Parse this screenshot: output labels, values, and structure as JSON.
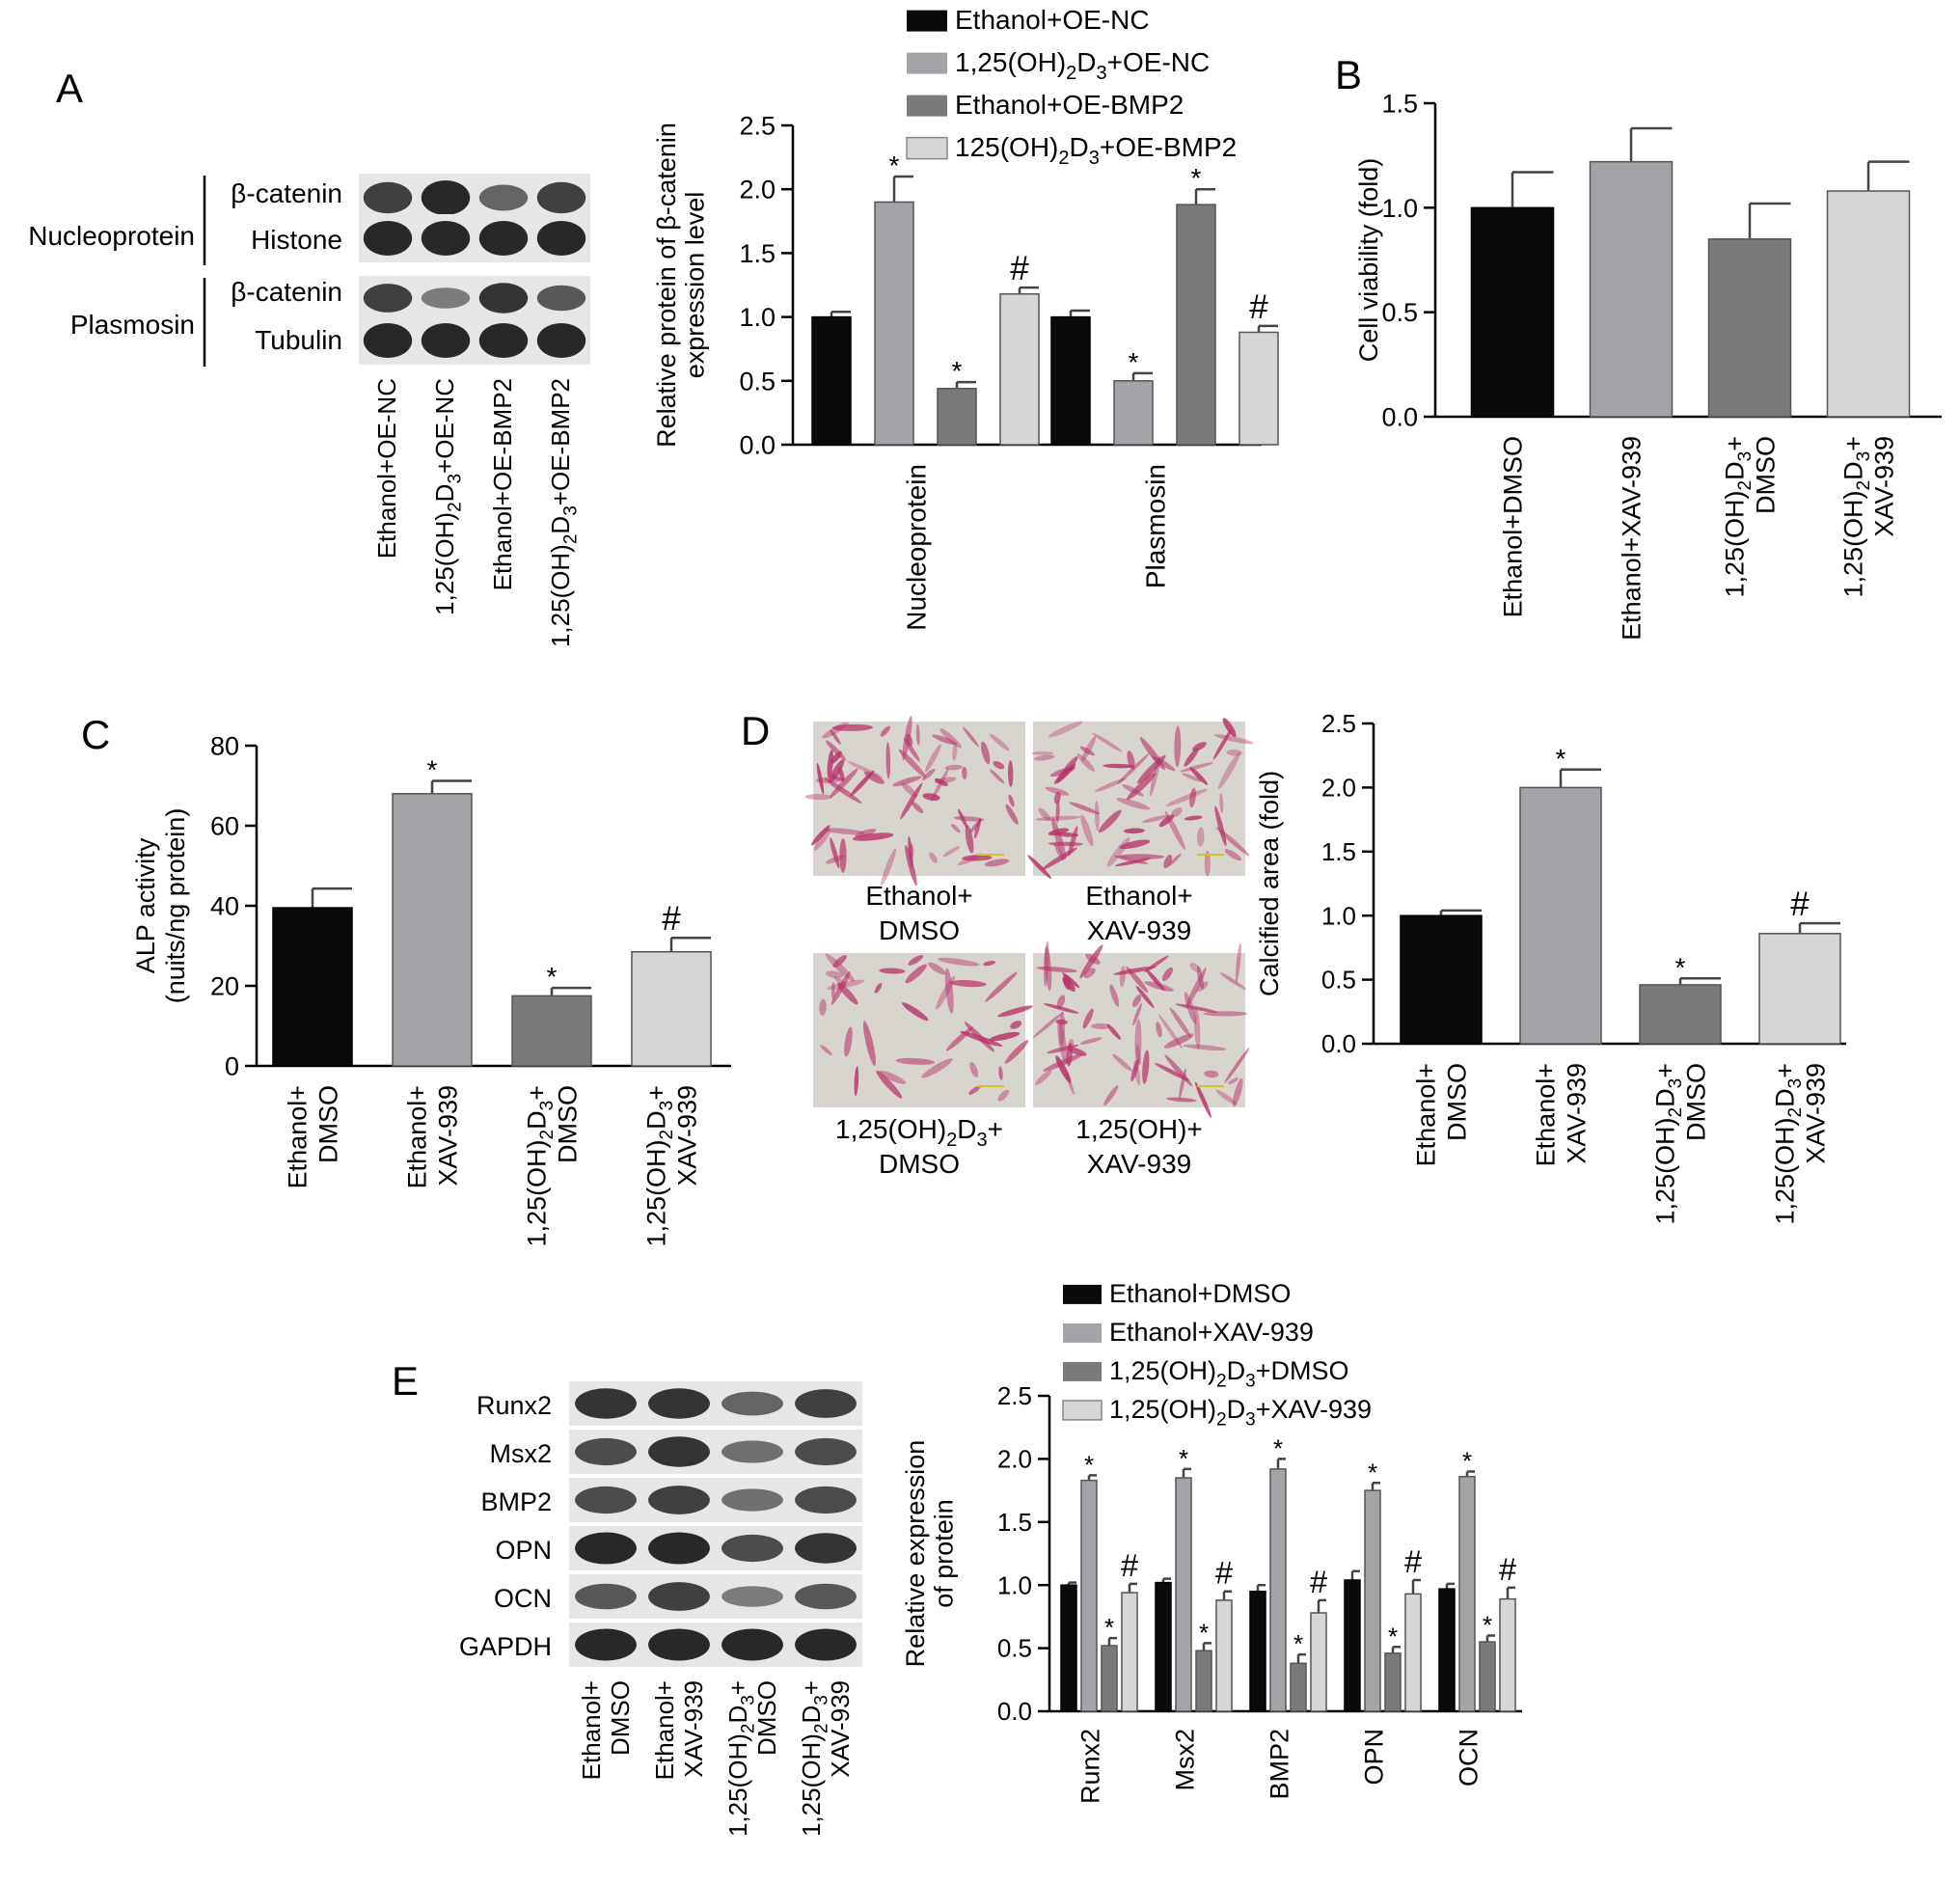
{
  "panels": {
    "A": {
      "letter": "A",
      "blot": {
        "row_labels": [
          "β-catenin",
          "Histone",
          "β-catenin",
          "Tubulin"
        ],
        "group_labels": [
          "Nucleoprotein",
          "Plasmosin"
        ],
        "lanes": [
          [
            "Ethanol+OE-NC"
          ],
          [
            "1,25(OH)",
            "2",
            "D",
            "3",
            "+OE-NC"
          ],
          [
            "Ethanol+OE-BMP2"
          ],
          [
            "1,25(OH)",
            "2",
            "D",
            "3",
            "+OE-BMP2"
          ]
        ],
        "band_intensity": [
          [
            0.8,
            1.0,
            0.5,
            0.8
          ],
          [
            1.0,
            1.0,
            1.0,
            1.0
          ],
          [
            0.8,
            0.3,
            0.9,
            0.6
          ],
          [
            1.0,
            1.0,
            1.0,
            1.0
          ]
        ]
      }
    },
    "B": {
      "letter": "B"
    },
    "C": {
      "letter": "C"
    },
    "D": {
      "letter": "D",
      "micrographs": [
        [
          "Ethanol+",
          "DMSO"
        ],
        [
          "Ethanol+",
          "XAV-939"
        ],
        [
          "1,25(OH)",
          "2",
          "D",
          "3",
          "+",
          "DMSO"
        ],
        [
          "1,25(OH)+",
          "XAV-939"
        ]
      ]
    },
    "E": {
      "letter": "E",
      "blot": {
        "row_labels": [
          "Runx2",
          "Msx2",
          "BMP2",
          "OPN",
          "OCN",
          "GAPDH"
        ],
        "lanes": [
          [
            "Ethanol+",
            "DMSO"
          ],
          [
            "Ethanol+",
            "XAV-939"
          ],
          [
            "1,25(OH)",
            "2",
            "D",
            "3",
            "+",
            "DMSO"
          ],
          [
            "1,25(OH)",
            "2",
            "D",
            "3",
            "+",
            "XAV-939"
          ]
        ],
        "band_intensity": [
          [
            0.9,
            0.9,
            0.5,
            0.8
          ],
          [
            0.7,
            0.9,
            0.4,
            0.7
          ],
          [
            0.7,
            0.8,
            0.4,
            0.7
          ],
          [
            1.0,
            1.0,
            0.7,
            0.9
          ],
          [
            0.6,
            0.8,
            0.3,
            0.6
          ],
          [
            1.0,
            1.0,
            1.0,
            1.0
          ]
        ]
      }
    }
  },
  "colors": {
    "black": "#0a0a0a",
    "gray_mid_light": "#a3a3a8",
    "gray_dark": "#7a7a7a",
    "gray_light": "#d6d6d6",
    "micrograph_bg": "#d8d4ce",
    "stain": "#b8326a"
  },
  "chart_data": [
    {
      "id": "A",
      "type": "bar",
      "ylabel": "Relative protein of β-catenin expression level",
      "ylim": [
        0,
        2.5
      ],
      "yticks": [
        "0.0",
        "0.5",
        "1.0",
        "1.5",
        "2.0",
        "2.5"
      ],
      "categories": [
        "Nucleoprotein",
        "Plasmosin"
      ],
      "legend": [
        [
          "Ethanol+OE-NC"
        ],
        [
          "1,25(OH)",
          "2",
          "D",
          "3",
          "+OE-NC"
        ],
        [
          "Ethanol+OE-BMP2"
        ],
        [
          "125(OH)",
          "2",
          "D",
          "3",
          "+OE-BMP2"
        ]
      ],
      "series": [
        {
          "values": [
            1.0,
            1.0
          ],
          "errors": [
            0.04,
            0.05
          ],
          "marks": [
            "",
            ""
          ]
        },
        {
          "values": [
            1.9,
            0.5
          ],
          "errors": [
            0.2,
            0.06
          ],
          "marks": [
            "*",
            "*"
          ]
        },
        {
          "values": [
            0.44,
            1.88
          ],
          "errors": [
            0.05,
            0.12
          ],
          "marks": [
            "*",
            "*"
          ]
        },
        {
          "values": [
            1.18,
            0.88
          ],
          "errors": [
            0.05,
            0.05
          ],
          "marks": [
            "#",
            "#"
          ]
        }
      ]
    },
    {
      "id": "B",
      "type": "bar",
      "ylabel": "Cell viability (fold)",
      "ylim": [
        0,
        1.5
      ],
      "yticks": [
        "0.0",
        "0.5",
        "1.0",
        "1.5"
      ],
      "categories": [
        [
          "Ethanol+DMSO"
        ],
        [
          "Ethanol+XAV-939"
        ],
        [
          "1,25(OH)",
          "2",
          "D",
          "3",
          "+",
          "DMSO"
        ],
        [
          "1,25(OH)",
          "2",
          "D",
          "3",
          "+",
          "XAV-939"
        ]
      ],
      "values": [
        1.0,
        1.22,
        0.85,
        1.08
      ],
      "errors": [
        0.17,
        0.16,
        0.17,
        0.14
      ],
      "marks": [
        "",
        "",
        "",
        ""
      ]
    },
    {
      "id": "C",
      "type": "bar",
      "ylabel": "ALP activity (nuits/ng protein)",
      "ylim": [
        0,
        80
      ],
      "yticks": [
        "0",
        "20",
        "40",
        "60",
        "80"
      ],
      "categories": [
        [
          "Ethanol+",
          "DMSO"
        ],
        [
          "Ethanol+",
          "XAV-939"
        ],
        [
          "1,25(OH)",
          "2",
          "D",
          "3",
          "+",
          "DMSO"
        ],
        [
          "1,25(OH)",
          "2",
          "D",
          "3",
          "+",
          "XAV-939"
        ]
      ],
      "values": [
        39.5,
        68,
        17.5,
        28.5
      ],
      "errors": [
        4.8,
        3.2,
        2.0,
        3.5
      ],
      "marks": [
        "",
        "*",
        "*",
        "#"
      ]
    },
    {
      "id": "D",
      "type": "bar",
      "ylabel": "Calcified area (fold)",
      "ylim": [
        0,
        2.5
      ],
      "yticks": [
        "0.0",
        "0.5",
        "1.0",
        "1.5",
        "2.0",
        "2.5"
      ],
      "categories": [
        [
          "Ethanol+",
          "DMSO"
        ],
        [
          "Ethanol+",
          "XAV-939"
        ],
        [
          "1,25(OH)",
          "2",
          "D",
          "3",
          "+",
          "DMSO"
        ],
        [
          "1,25(OH)",
          "2",
          "D",
          "3",
          "+",
          "XAV-939"
        ]
      ],
      "values": [
        1.0,
        2.0,
        0.46,
        0.86
      ],
      "errors": [
        0.04,
        0.14,
        0.05,
        0.08
      ],
      "marks": [
        "",
        "*",
        "*",
        "#"
      ]
    },
    {
      "id": "E",
      "type": "bar",
      "ylabel": "Relative expression of protein",
      "ylim": [
        0,
        2.5
      ],
      "yticks": [
        "0.0",
        "0.5",
        "1.0",
        "1.5",
        "2.0",
        "2.5"
      ],
      "categories": [
        "Runx2",
        "Msx2",
        "BMP2",
        "OPN",
        "OCN"
      ],
      "legend": [
        [
          "Ethanol+DMSO"
        ],
        [
          "Ethanol+XAV-939"
        ],
        [
          "1,25(OH)",
          "2",
          "D",
          "3",
          "+DMSO"
        ],
        [
          "1,25(OH)",
          "2",
          "D",
          "3",
          "+XAV-939"
        ]
      ],
      "series": [
        {
          "values": [
            1.0,
            1.02,
            0.95,
            1.04,
            0.97
          ],
          "errors": [
            0.02,
            0.03,
            0.05,
            0.07,
            0.04
          ],
          "marks": [
            "",
            "",
            "",
            "",
            ""
          ]
        },
        {
          "values": [
            1.83,
            1.85,
            1.92,
            1.75,
            1.86
          ],
          "errors": [
            0.04,
            0.07,
            0.08,
            0.06,
            0.04
          ],
          "marks": [
            "*",
            "*",
            "*",
            "*",
            "*"
          ]
        },
        {
          "values": [
            0.52,
            0.48,
            0.38,
            0.46,
            0.55
          ],
          "errors": [
            0.06,
            0.06,
            0.07,
            0.05,
            0.05
          ],
          "marks": [
            "*",
            "*",
            "*",
            "*",
            "*"
          ]
        },
        {
          "values": [
            0.94,
            0.88,
            0.78,
            0.93,
            0.89
          ],
          "errors": [
            0.07,
            0.07,
            0.1,
            0.11,
            0.09
          ],
          "marks": [
            "#",
            "#",
            "#",
            "#",
            "#"
          ]
        }
      ]
    }
  ]
}
